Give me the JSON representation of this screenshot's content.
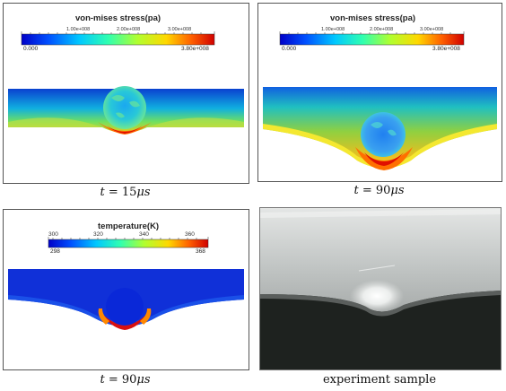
{
  "panels": [
    {
      "id": "stress-15",
      "colorbar": {
        "title": "von-mises stress(pa)",
        "ticks": [
          "1.00e+008",
          "2.00e+008",
          "3.00e+008"
        ],
        "min": "0.000",
        "max": "3.80e+008"
      },
      "caption": {
        "var": "t",
        "value": "15",
        "unit": "μs"
      }
    },
    {
      "id": "stress-90",
      "colorbar": {
        "title": "von-mises stress(pa)",
        "ticks": [
          "1.00e+008",
          "2.00e+008",
          "3.00e+008"
        ],
        "min": "0.000",
        "max": "3.80e+008"
      },
      "caption": {
        "var": "t",
        "value": "90",
        "unit": "μs"
      }
    },
    {
      "id": "temperature-90",
      "colorbar": {
        "title": "temperature(K)",
        "ticks": [
          "300",
          "320",
          "340",
          "360"
        ],
        "min": "298",
        "max": "368"
      },
      "caption": {
        "var": "t",
        "value": "90",
        "unit": "μs"
      }
    },
    {
      "id": "experiment",
      "caption": {
        "label": "experiment sample"
      }
    }
  ],
  "colors": {
    "jet": [
      "#0000c8",
      "#0050ff",
      "#00c8ff",
      "#30ffb0",
      "#b0ff30",
      "#ffd800",
      "#ff6000",
      "#d00000"
    ],
    "photo_sheet": "#c8cccb",
    "photo_background": "#1e221f"
  }
}
